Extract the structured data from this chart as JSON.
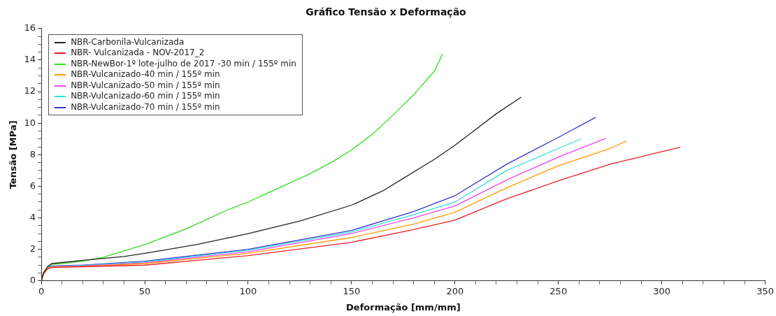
{
  "chart_data": {
    "type": "line",
    "title": "Gráfico Tensão x Deformação",
    "xlabel": "Deformação [mm/mm]",
    "ylabel": "Tensão [MPa]",
    "xlim": [
      0,
      350
    ],
    "ylim": [
      0,
      16
    ],
    "xticks": [
      0,
      {
        "value": 10,
        "label": null
      },
      {
        "value": 20,
        "label": null
      },
      {
        "value": 30,
        "label": null
      },
      {
        "value": 40,
        "label": null
      },
      50,
      {
        "value": 60,
        "label": null
      },
      {
        "value": 70,
        "label": null
      },
      {
        "value": 80,
        "label": null
      },
      {
        "value": 90,
        "label": null
      },
      100,
      {
        "value": 110,
        "label": null
      },
      {
        "value": 120,
        "label": null
      },
      {
        "value": 130,
        "label": null
      },
      {
        "value": 140,
        "label": null
      },
      150,
      {
        "value": 160,
        "label": null
      },
      {
        "value": 170,
        "label": null
      },
      {
        "value": 180,
        "label": null
      },
      {
        "value": 190,
        "label": null
      },
      200,
      {
        "value": 210,
        "label": null
      },
      {
        "value": 220,
        "label": null
      },
      {
        "value": 230,
        "label": null
      },
      {
        "value": 240,
        "label": null
      },
      250,
      {
        "value": 260,
        "label": null
      },
      {
        "value": 270,
        "label": null
      },
      {
        "value": 280,
        "label": null
      },
      {
        "value": 290,
        "label": null
      },
      300,
      {
        "value": 310,
        "label": null
      },
      {
        "value": 320,
        "label": null
      },
      {
        "value": 330,
        "label": null
      },
      {
        "value": 340,
        "label": null
      },
      350
    ],
    "yticks": [
      0,
      {
        "value": 0.5,
        "label": null
      },
      {
        "value": 1,
        "label": null
      },
      {
        "value": 1.5,
        "label": null
      },
      2,
      {
        "value": 2.5,
        "label": null
      },
      {
        "value": 3,
        "label": null
      },
      {
        "value": 3.5,
        "label": null
      },
      4,
      {
        "value": 4.5,
        "label": null
      },
      {
        "value": 5,
        "label": null
      },
      {
        "value": 5.5,
        "label": null
      },
      6,
      {
        "value": 6.5,
        "label": null
      },
      {
        "value": 7,
        "label": null
      },
      {
        "value": 7.5,
        "label": null
      },
      8,
      {
        "value": 8.5,
        "label": null
      },
      {
        "value": 9,
        "label": null
      },
      {
        "value": 9.5,
        "label": null
      },
      10,
      {
        "value": 10.5,
        "label": null
      },
      {
        "value": 11,
        "label": null
      },
      {
        "value": 11.5,
        "label": null
      },
      12,
      {
        "value": 12.5,
        "label": null
      },
      {
        "value": 13,
        "label": null
      },
      {
        "value": 13.5,
        "label": null
      },
      14,
      {
        "value": 14.5,
        "label": null
      },
      {
        "value": 15,
        "label": null
      },
      {
        "value": 15.5,
        "label": null
      },
      16
    ],
    "grid": false,
    "legend": "top left",
    "marker": "none",
    "line_style": "solid",
    "series": [
      {
        "name": "NBR-Carbonila-Vulcanizada",
        "color": "#222222",
        "x": [
          0,
          1,
          3,
          5,
          20,
          40,
          50,
          75,
          100,
          125,
          150,
          165,
          175,
          190,
          200,
          210,
          220,
          232
        ],
        "values": [
          0,
          0.5,
          0.9,
          1.1,
          1.3,
          1.55,
          1.75,
          2.3,
          3.0,
          3.8,
          4.8,
          5.7,
          6.5,
          7.7,
          8.6,
          9.6,
          10.6,
          11.65
        ]
      },
      {
        "name": "NBR- Vulcanizada - NOV-2017_2",
        "color": "#e8202a",
        "x": [
          0,
          1,
          3,
          5,
          20,
          50,
          100,
          150,
          180,
          200,
          225,
          250,
          275,
          300,
          309
        ],
        "values": [
          0,
          0.45,
          0.75,
          0.85,
          0.9,
          1.0,
          1.6,
          2.45,
          3.25,
          3.85,
          5.2,
          6.35,
          7.4,
          8.2,
          8.47
        ]
      },
      {
        "name": "NBR-NewBor-1º lote-julho de 2017 -30 min / 155º min",
        "color": "#33dd22",
        "x": [
          0,
          1,
          3,
          5,
          10,
          20,
          30,
          40,
          50,
          60,
          70,
          80,
          90,
          100,
          110,
          120,
          130,
          140,
          150,
          160,
          170,
          180,
          190,
          194
        ],
        "values": [
          0,
          0.5,
          0.9,
          1.05,
          1.1,
          1.25,
          1.5,
          1.9,
          2.3,
          2.8,
          3.3,
          3.9,
          4.5,
          5.0,
          5.6,
          6.2,
          6.8,
          7.5,
          8.3,
          9.3,
          10.5,
          11.8,
          13.3,
          14.4
        ]
      },
      {
        "name": "NBR-Vulcanizado-40 min / 155º min",
        "color": "#ff9900",
        "x": [
          0,
          1,
          3,
          5,
          20,
          50,
          100,
          150,
          180,
          200,
          225,
          250,
          275,
          283
        ],
        "values": [
          0,
          0.45,
          0.8,
          0.88,
          0.92,
          1.1,
          1.75,
          2.75,
          3.6,
          4.35,
          5.9,
          7.3,
          8.4,
          8.87
        ]
      },
      {
        "name": "NBR-Vulcanizado-50 min / 155º min",
        "color": "#ee44ee",
        "x": [
          3,
          5,
          20,
          50,
          100,
          150,
          180,
          200,
          225,
          250,
          273
        ],
        "values": [
          0.8,
          0.9,
          0.95,
          1.15,
          1.85,
          3.0,
          4.0,
          4.75,
          6.4,
          7.85,
          9.04
        ]
      },
      {
        "name": "NBR-Vulcanizado-60 min / 155º min",
        "color": "#33dddd",
        "x": [
          0,
          1,
          3,
          5,
          20,
          50,
          100,
          150,
          180,
          200,
          225,
          250,
          261
        ],
        "values": [
          0,
          0.5,
          0.85,
          0.92,
          0.98,
          1.2,
          1.95,
          3.1,
          4.2,
          5.0,
          7.0,
          8.4,
          9.0
        ]
      },
      {
        "name": "NBR-Vulcanizado-70 min / 155º min",
        "color": "#3333cc",
        "x": [
          0,
          1,
          3,
          5,
          20,
          50,
          100,
          150,
          180,
          200,
          225,
          250,
          268
        ],
        "values": [
          0,
          0.5,
          0.85,
          0.95,
          1.0,
          1.25,
          2.0,
          3.2,
          4.4,
          5.4,
          7.4,
          9.1,
          10.37
        ]
      }
    ]
  }
}
